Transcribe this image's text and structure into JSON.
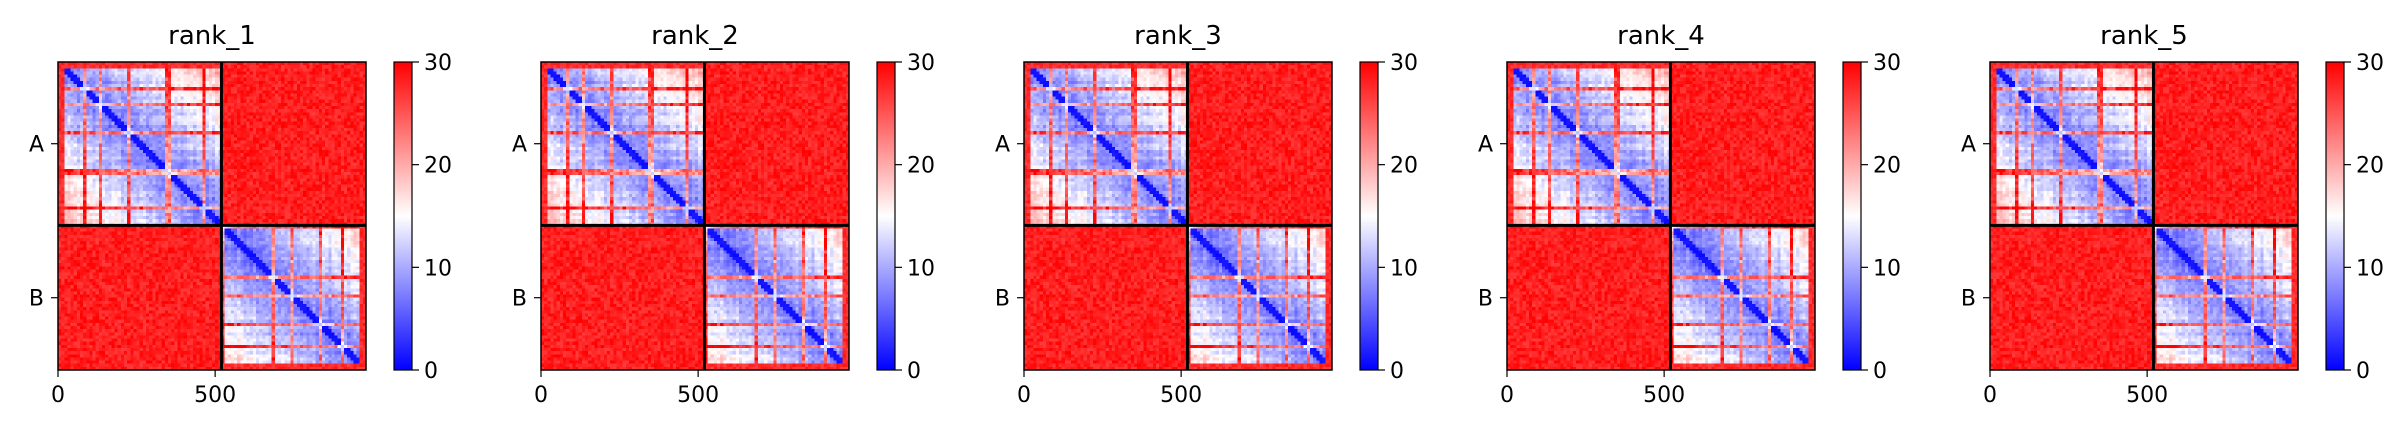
{
  "chart_data": [
    {
      "type": "heatmap",
      "title": "rank_1",
      "chain_labels": [
        "A",
        "B"
      ],
      "chain_boundary": 520,
      "xlim": [
        0,
        980
      ],
      "xticks": [
        0,
        500
      ],
      "colorbar": {
        "min": 0,
        "max": 30,
        "ticks": [
          0,
          10,
          20,
          30
        ],
        "colormap": "bwr"
      }
    },
    {
      "type": "heatmap",
      "title": "rank_2",
      "chain_labels": [
        "A",
        "B"
      ],
      "chain_boundary": 520,
      "xlim": [
        0,
        980
      ],
      "xticks": [
        0,
        500
      ],
      "colorbar": {
        "min": 0,
        "max": 30,
        "ticks": [
          0,
          10,
          20,
          30
        ],
        "colormap": "bwr"
      }
    },
    {
      "type": "heatmap",
      "title": "rank_3",
      "chain_labels": [
        "A",
        "B"
      ],
      "chain_boundary": 520,
      "xlim": [
        0,
        980
      ],
      "xticks": [
        0,
        500
      ],
      "colorbar": {
        "min": 0,
        "max": 30,
        "ticks": [
          0,
          10,
          20,
          30
        ],
        "colormap": "bwr"
      }
    },
    {
      "type": "heatmap",
      "title": "rank_4",
      "chain_labels": [
        "A",
        "B"
      ],
      "chain_boundary": 520,
      "xlim": [
        0,
        980
      ],
      "xticks": [
        0,
        500
      ],
      "colorbar": {
        "min": 0,
        "max": 30,
        "ticks": [
          0,
          10,
          20,
          30
        ],
        "colormap": "bwr"
      }
    },
    {
      "type": "heatmap",
      "title": "rank_5",
      "chain_labels": [
        "A",
        "B"
      ],
      "chain_boundary": 520,
      "xlim": [
        0,
        980
      ],
      "xticks": [
        0,
        500
      ],
      "colorbar": {
        "min": 0,
        "max": 30,
        "ticks": [
          0,
          10,
          20,
          30
        ],
        "colormap": "bwr"
      }
    }
  ],
  "colors": {
    "low": "#0000ff",
    "mid": "#ffffff",
    "high": "#ff0000",
    "divider": "#000000"
  }
}
